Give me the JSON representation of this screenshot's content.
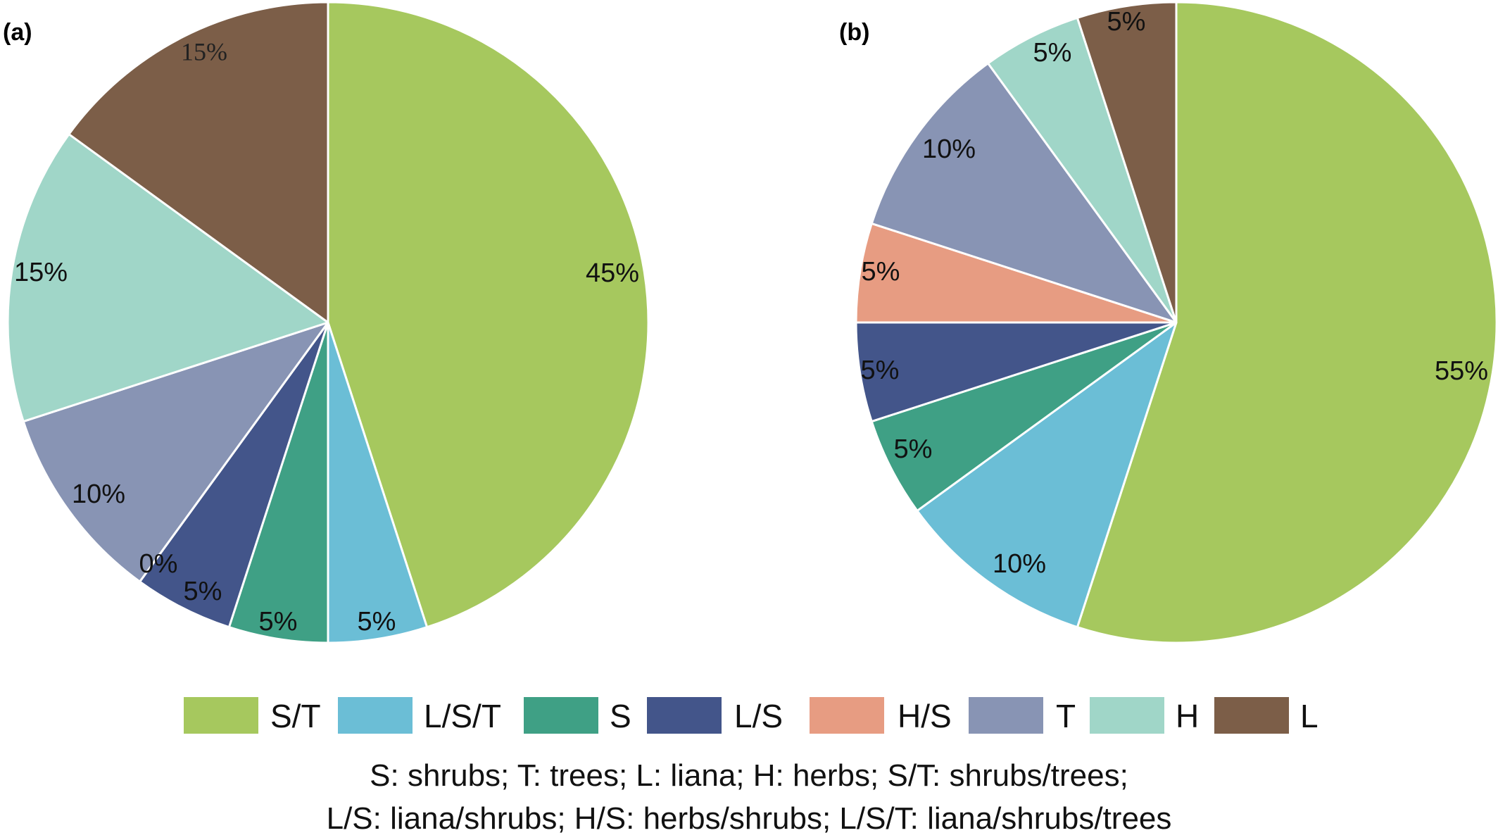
{
  "chart_data": [
    {
      "type": "pie",
      "panel": "(a)",
      "slices": [
        {
          "name": "S/T",
          "value": 45,
          "label": "45%",
          "color": "#A6C85E"
        },
        {
          "name": "L/S/T",
          "value": 5,
          "label": "5%",
          "color": "#6BBED6"
        },
        {
          "name": "S",
          "value": 5,
          "label": "5%",
          "color": "#3FA085"
        },
        {
          "name": "L/S",
          "value": 5,
          "label": "5%",
          "color": "#43558A"
        },
        {
          "name": "H/S",
          "value": 0,
          "label": "0%",
          "color": "#E79C82"
        },
        {
          "name": "T",
          "value": 10,
          "label": "10%",
          "color": "#8894B4"
        },
        {
          "name": "H",
          "value": 15,
          "label": "15%",
          "color": "#A0D6C8"
        },
        {
          "name": "L",
          "value": 15,
          "label": "15%",
          "color": "#7C5E48"
        }
      ]
    },
    {
      "type": "pie",
      "panel": "(b)",
      "slices": [
        {
          "name": "S/T",
          "value": 55,
          "label": "55%",
          "color": "#A6C85E"
        },
        {
          "name": "L/S/T",
          "value": 10,
          "label": "10%",
          "color": "#6BBED6"
        },
        {
          "name": "S",
          "value": 5,
          "label": "5%",
          "color": "#3FA085"
        },
        {
          "name": "L/S",
          "value": 5,
          "label": "5%",
          "color": "#43558A"
        },
        {
          "name": "H/S",
          "value": 5,
          "label": "5%",
          "color": "#E79C82"
        },
        {
          "name": "T",
          "value": 10,
          "label": "10%",
          "color": "#8894B4"
        },
        {
          "name": "H",
          "value": 5,
          "label": "5%",
          "color": "#A0D6C8"
        },
        {
          "name": "L",
          "value": 5,
          "label": "5%",
          "color": "#7C5E48"
        }
      ]
    }
  ],
  "legend": [
    {
      "label": "S/T",
      "color": "#A6C85E"
    },
    {
      "label": "L/S/T",
      "color": "#6BBED6"
    },
    {
      "label": "S",
      "color": "#3FA085"
    },
    {
      "label": "L/S",
      "color": "#43558A"
    },
    {
      "label": "H/S",
      "color": "#E79C82"
    },
    {
      "label": "T",
      "color": "#8894B4"
    },
    {
      "label": "H",
      "color": "#A0D6C8"
    },
    {
      "label": "L",
      "color": "#7C5E48"
    }
  ],
  "notes": {
    "line1": "S: shrubs; T: trees; L: liana; H: herbs; S/T: shrubs/trees;",
    "line2": "L/S: liana/shrubs; H/S: herbs/shrubs; L/S/T: liana/shrubs/trees"
  }
}
